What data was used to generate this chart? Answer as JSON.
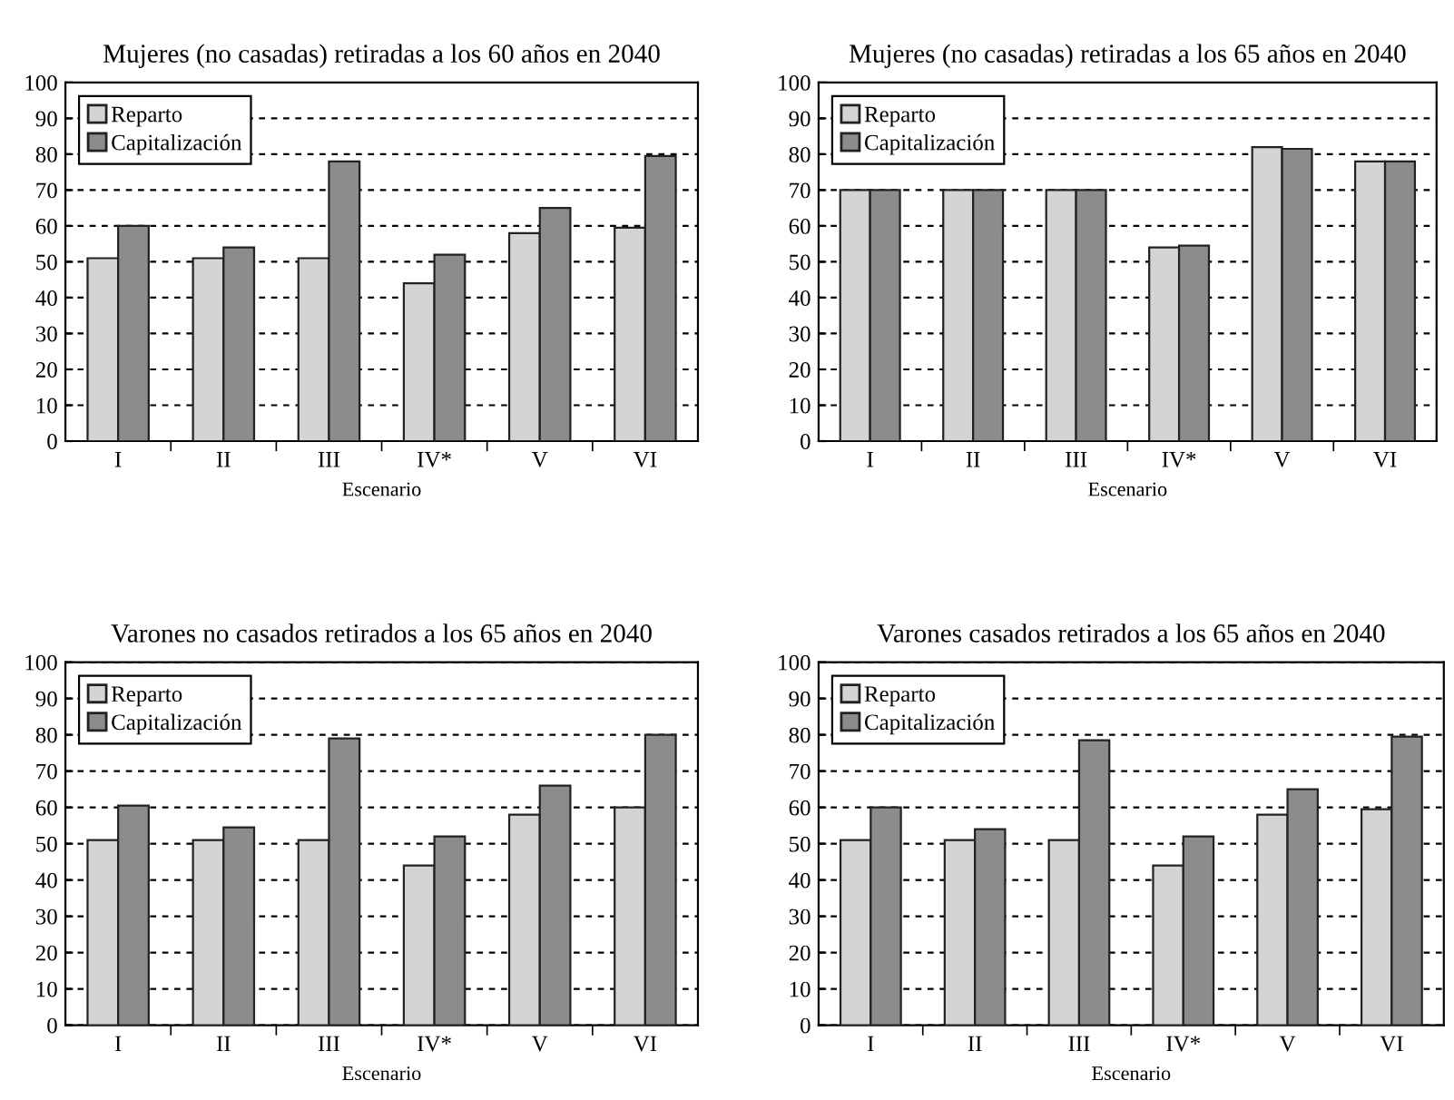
{
  "chart_data": [
    {
      "type": "bar",
      "title": "Mujeres (no casadas) retiradas a los 60 años en 2040",
      "xlabel": "Escenario",
      "categories": [
        "I",
        "II",
        "III",
        "IV*",
        "V",
        "VI"
      ],
      "series": [
        {
          "name": "Reparto",
          "color": "#d4d4d4",
          "values": [
            51,
            51,
            51,
            44,
            58,
            59.5
          ]
        },
        {
          "name": "Capitalización",
          "color": "#8c8c8c",
          "values": [
            60,
            54,
            78,
            52,
            65,
            79.5
          ]
        }
      ],
      "ylim": [
        0,
        100
      ],
      "yticks": [
        0,
        10,
        20,
        30,
        40,
        50,
        60,
        70,
        80,
        90,
        100
      ],
      "grid": "y",
      "legend": "top left"
    },
    {
      "type": "bar",
      "title": "Mujeres (no casadas) retiradas a los 65 años en 2040",
      "xlabel": "Escenario",
      "categories": [
        "I",
        "II",
        "III",
        "IV*",
        "V",
        "VI"
      ],
      "series": [
        {
          "name": "Reparto",
          "color": "#d4d4d4",
          "values": [
            70,
            70,
            70,
            54,
            82,
            78
          ]
        },
        {
          "name": "Capitalización",
          "color": "#8c8c8c",
          "values": [
            70,
            70,
            70,
            54.5,
            81.5,
            78
          ]
        }
      ],
      "ylim": [
        0,
        100
      ],
      "yticks": [
        0,
        10,
        20,
        30,
        40,
        50,
        60,
        70,
        80,
        90,
        100
      ],
      "grid": "y",
      "legend": "top left"
    },
    {
      "type": "bar",
      "title": "Varones no casados retirados a los 65 años en 2040",
      "xlabel": "Escenario",
      "categories": [
        "I",
        "II",
        "III",
        "IV*",
        "V",
        "VI"
      ],
      "series": [
        {
          "name": "Reparto",
          "color": "#d4d4d4",
          "values": [
            51,
            51,
            51,
            44,
            58,
            60
          ]
        },
        {
          "name": "Capitalización",
          "color": "#8c8c8c",
          "values": [
            60.5,
            54.5,
            79,
            52,
            66,
            80
          ]
        }
      ],
      "ylim": [
        0,
        100
      ],
      "yticks": [
        0,
        10,
        20,
        30,
        40,
        50,
        60,
        70,
        80,
        90,
        100
      ],
      "grid": "y",
      "legend": "top left"
    },
    {
      "type": "bar",
      "title": "Varones casados retirados a los 65 años en 2040",
      "xlabel": "Escenario",
      "categories": [
        "I",
        "II",
        "III",
        "IV*",
        "V",
        "VI"
      ],
      "series": [
        {
          "name": "Reparto",
          "color": "#d4d4d4",
          "values": [
            51,
            51,
            51,
            44,
            58,
            59.5
          ]
        },
        {
          "name": "Capitalización",
          "color": "#8c8c8c",
          "values": [
            60,
            54,
            78.5,
            52,
            65,
            79.5
          ]
        }
      ],
      "ylim": [
        0,
        100
      ],
      "yticks": [
        0,
        10,
        20,
        30,
        40,
        50,
        60,
        70,
        80,
        90,
        100
      ],
      "grid": "y",
      "legend": "top left"
    }
  ]
}
